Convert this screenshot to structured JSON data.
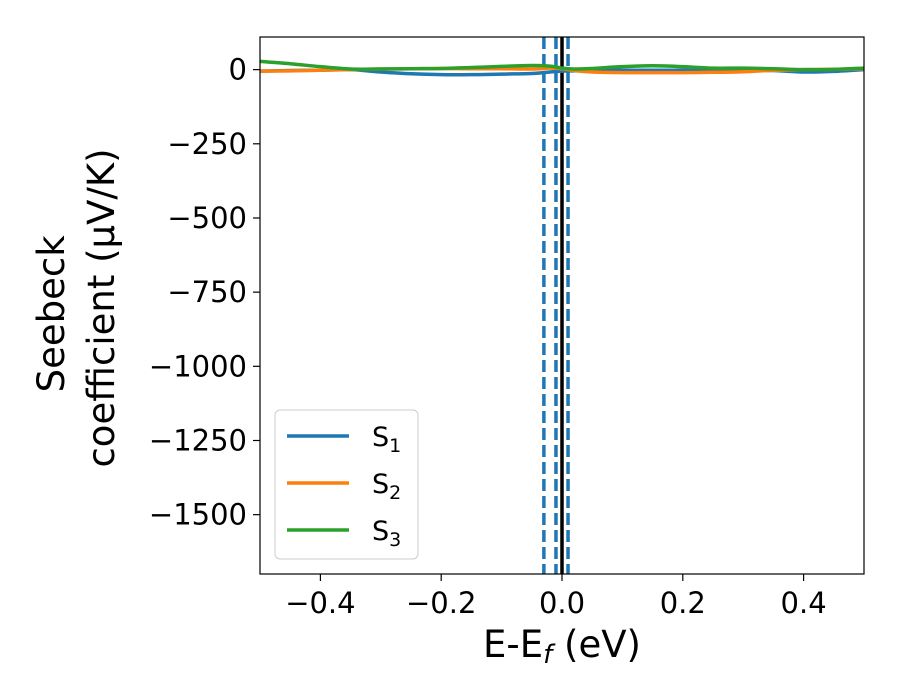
{
  "chart_data": {
    "type": "line",
    "title": "",
    "xlabel_parts": [
      "E-E",
      "f",
      " (eV)"
    ],
    "ylabel_lines": [
      "Seebeck",
      "coefficient  (μV/K)"
    ],
    "xlim": [
      -0.5,
      0.5
    ],
    "ylim": [
      -1700,
      110
    ],
    "xticks": [
      -0.4,
      -0.2,
      0.0,
      0.2,
      0.4
    ],
    "xtick_labels": [
      "−0.4",
      "−0.2",
      "0.0",
      "0.2",
      "0.4"
    ],
    "yticks": [
      0,
      -250,
      -500,
      -750,
      -1000,
      -1250,
      -1500
    ],
    "ytick_labels": [
      "0",
      "−250",
      "−500",
      "−750",
      "−1000",
      "−1250",
      "−1500"
    ],
    "grid": false,
    "legend_position": "bottom-left",
    "series": [
      {
        "name_base": "S",
        "name_sub": "1",
        "color": "#1f77b4",
        "x": [
          -0.5,
          -0.45,
          -0.4,
          -0.35,
          -0.3,
          -0.25,
          -0.2,
          -0.15,
          -0.1,
          -0.05,
          -0.02,
          0.0,
          0.02,
          0.05,
          0.1,
          0.15,
          0.2,
          0.25,
          0.3,
          0.35,
          0.4,
          0.45,
          0.5
        ],
        "y": [
          -5,
          -3,
          -2,
          0,
          -8,
          -14,
          -17,
          -17,
          -15,
          -13,
          -8,
          -5,
          -4,
          -3,
          -2,
          -2,
          -2,
          -3,
          -2,
          -3,
          -8,
          -6,
          0
        ]
      },
      {
        "name_base": "S",
        "name_sub": "2",
        "color": "#ff7f0e",
        "x": [
          -0.5,
          -0.45,
          -0.4,
          -0.35,
          -0.3,
          -0.25,
          -0.2,
          -0.15,
          -0.1,
          -0.05,
          -0.02,
          0.0,
          0.02,
          0.05,
          0.1,
          0.15,
          0.2,
          0.25,
          0.3,
          0.35,
          0.4,
          0.45,
          0.5
        ],
        "y": [
          -5,
          -4,
          -2,
          0,
          2,
          3,
          4,
          3,
          3,
          2,
          5,
          3,
          -3,
          -8,
          -10,
          -10,
          -10,
          -9,
          -7,
          -2,
          0,
          1,
          3
        ]
      },
      {
        "name_base": "S",
        "name_sub": "3",
        "color": "#2ca02c",
        "x": [
          -0.5,
          -0.45,
          -0.4,
          -0.35,
          -0.3,
          -0.25,
          -0.2,
          -0.15,
          -0.1,
          -0.05,
          -0.02,
          0.0,
          0.02,
          0.05,
          0.1,
          0.15,
          0.2,
          0.25,
          0.3,
          0.35,
          0.4,
          0.45,
          0.5
        ],
        "y": [
          28,
          20,
          10,
          2,
          2,
          3,
          4,
          7,
          11,
          14,
          12,
          5,
          2,
          4,
          10,
          13,
          10,
          5,
          5,
          3,
          0,
          1,
          5
        ]
      }
    ],
    "vlines": [
      {
        "x": -0.03,
        "style": "dashed",
        "color": "#1f77b4"
      },
      {
        "x": -0.01,
        "style": "dashed",
        "color": "#1f77b4"
      },
      {
        "x": 0.01,
        "style": "dashed",
        "color": "#1f77b4"
      },
      {
        "x": 0.0,
        "style": "solid",
        "color": "#000000"
      }
    ]
  }
}
